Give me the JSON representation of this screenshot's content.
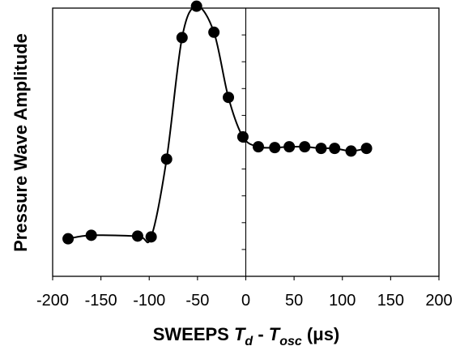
{
  "chart_data": {
    "type": "scatter",
    "title": "",
    "xlabel": {
      "prefix": "SWEEPS ",
      "var1": "T",
      "sub1": "d",
      "op": " - ",
      "var2": "T",
      "sub2": "osc",
      "unit": " (μs)"
    },
    "ylabel": "Pressure Wave Amplitude",
    "xlim": [
      -200,
      200
    ],
    "ylim": [
      0,
      10
    ],
    "xticks": [
      -200,
      -150,
      -100,
      -50,
      0,
      50,
      100,
      150,
      200
    ],
    "xtick_labels": [
      "-200",
      "-150",
      "-100",
      "-50",
      "0",
      "50",
      "100",
      "150",
      "200"
    ],
    "yticks_on_zero_axis": [
      1,
      2,
      3,
      4,
      5,
      6,
      7,
      8,
      9,
      10
    ],
    "y_tick_labels_shown": false,
    "grid": false,
    "legend": "none",
    "colors": {
      "marker": "#000000",
      "line": "#000000",
      "frame": "#000000"
    },
    "series": [
      {
        "style": "markers-with-smooth-line",
        "points": [
          {
            "x": -184,
            "y": 1.4
          },
          {
            "x": -160,
            "y": 1.53
          },
          {
            "x": -112,
            "y": 1.5
          },
          {
            "x": -98,
            "y": 1.47
          },
          {
            "x": -82,
            "y": 4.37
          },
          {
            "x": -66,
            "y": 8.9
          },
          {
            "x": -51,
            "y": 10.07
          },
          {
            "x": -33,
            "y": 9.1
          },
          {
            "x": -18,
            "y": 6.67
          },
          {
            "x": -3,
            "y": 5.2
          },
          {
            "x": 13,
            "y": 4.83
          },
          {
            "x": 30,
            "y": 4.8
          },
          {
            "x": 45,
            "y": 4.83
          },
          {
            "x": 61,
            "y": 4.83
          },
          {
            "x": 78,
            "y": 4.77
          },
          {
            "x": 92,
            "y": 4.77
          },
          {
            "x": 109,
            "y": 4.67
          },
          {
            "x": 125,
            "y": 4.77
          }
        ]
      }
    ]
  }
}
